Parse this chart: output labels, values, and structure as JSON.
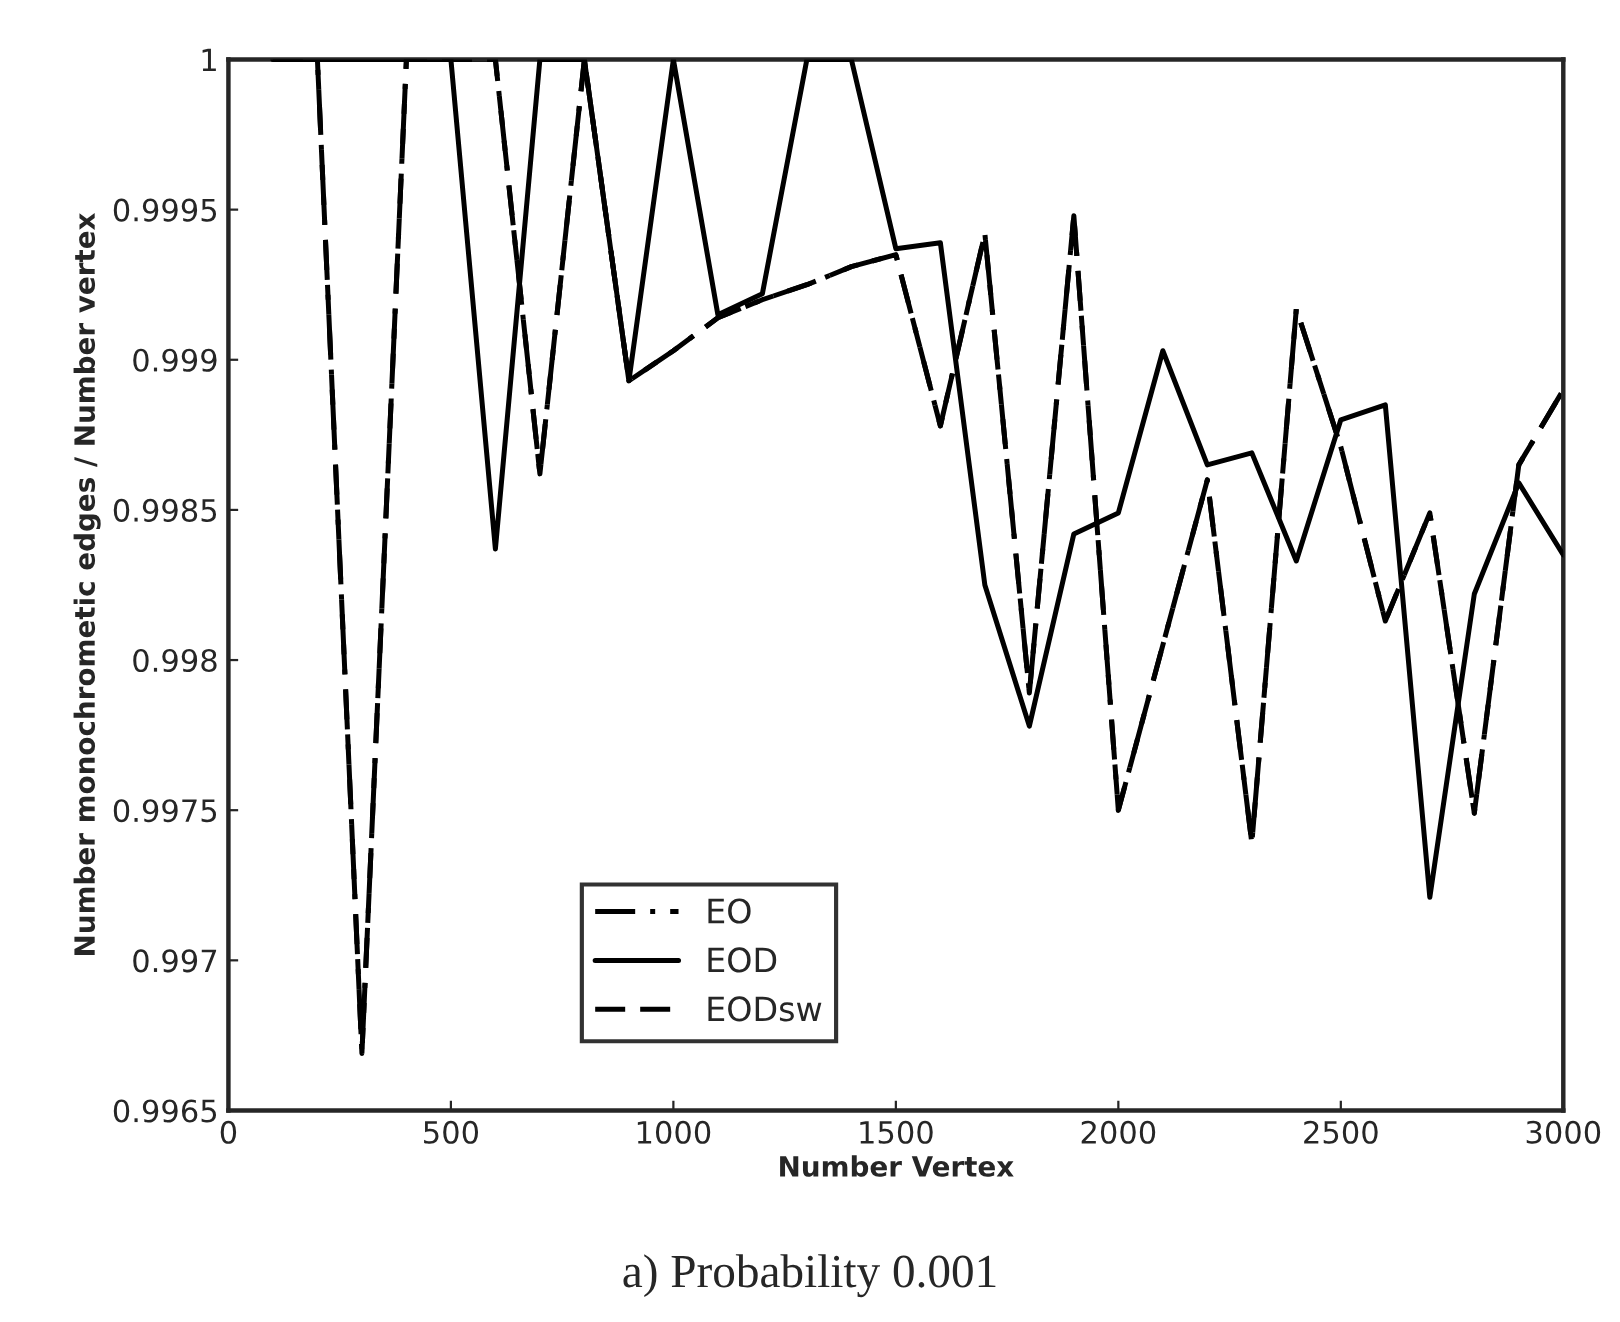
{
  "chart_data": {
    "type": "line",
    "title": "a) Probability 0.001",
    "xlabel": "Number Vertex",
    "ylabel": "Number monochrometic edges / Number vertex",
    "x": [
      100,
      200,
      300,
      400,
      500,
      600,
      700,
      800,
      900,
      1000,
      1100,
      1200,
      1300,
      1400,
      1500,
      1600,
      1700,
      1800,
      1900,
      2000,
      2100,
      2200,
      2300,
      2400,
      2500,
      2600,
      2700,
      2800,
      2900,
      3000
    ],
    "series": [
      {
        "name": "EO",
        "color": "#000000",
        "line_style": "dashdot",
        "values": [
          1,
          1,
          0.99669,
          1,
          1,
          1,
          0.99862,
          1,
          0.99893,
          0.99903,
          0.99914,
          0.9992,
          0.99925,
          0.99931,
          0.99935,
          0.99878,
          0.99942,
          0.99789,
          0.99948,
          0.9975,
          0.99805,
          0.9986,
          0.99739,
          0.99917,
          0.99871,
          0.99813,
          0.99849,
          0.99749,
          0.99865,
          0.9989
        ]
      },
      {
        "name": "EOD",
        "color": "#000000",
        "line_style": "solid",
        "values": [
          1,
          1,
          1,
          1,
          1,
          0.99837,
          1,
          1,
          0.99893,
          1,
          0.99915,
          0.99922,
          1,
          1,
          0.99937,
          0.99939,
          0.99825,
          0.99778,
          0.99842,
          0.99849,
          0.99903,
          0.99865,
          0.99869,
          0.99833,
          0.9988,
          0.99885,
          0.99721,
          0.99822,
          0.99859,
          0.99835
        ]
      },
      {
        "name": "EODsw",
        "color": "#000000",
        "line_style": "dashed",
        "values": [
          1,
          1,
          0.99669,
          1,
          1,
          1,
          0.99862,
          1,
          0.99893,
          0.99903,
          0.99914,
          0.9992,
          0.99925,
          0.99931,
          0.99935,
          0.99878,
          0.99942,
          0.99789,
          0.99948,
          0.9975,
          0.99805,
          0.9986,
          0.99739,
          0.99917,
          0.99871,
          0.99813,
          0.99849,
          0.99749,
          0.99865,
          0.9989
        ]
      }
    ],
    "xlim": [
      0,
      3000
    ],
    "xticks": [
      0,
      500,
      1000,
      1500,
      2000,
      2500,
      3000
    ],
    "ylim": [
      0.9965,
      1
    ],
    "yticks": [
      0.9965,
      0.997,
      0.9975,
      0.998,
      0.9985,
      0.999,
      0.9995,
      1
    ],
    "grid": false,
    "legend": "lower center",
    "marker": "none"
  }
}
